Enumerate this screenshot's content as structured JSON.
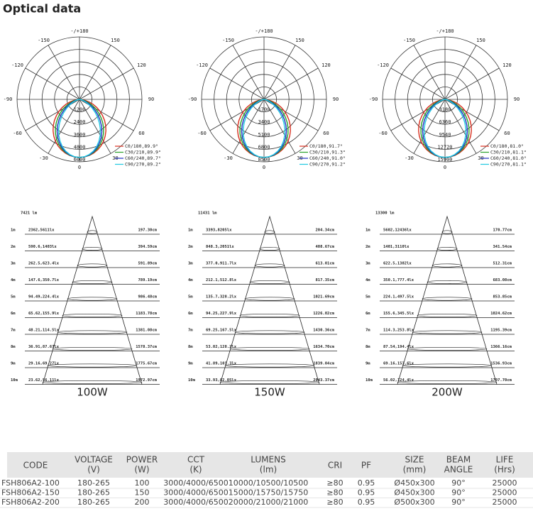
{
  "title": "Optical data",
  "polar_angles": [
    {
      "value": 180,
      "label": "-/+180"
    },
    -150,
    150,
    -120,
    120,
    -90,
    90,
    -60,
    60,
    -30,
    30,
    0
  ],
  "photometrics": [
    {
      "radial_ticks": [
        1200,
        2400,
        3600,
        4800,
        6000
      ],
      "legend": [
        {
          "name": "C0/180,89.9°",
          "color": "#d83020"
        },
        {
          "name": "C30/210,89.9°",
          "color": "#2aa02a"
        },
        {
          "name": "C60/240,89.7°",
          "color": "#2030c0"
        },
        {
          "name": "C90/270,89.2°",
          "color": "#20c8e0"
        }
      ],
      "lumens": "7421 lm",
      "rows": [
        [
          "1m",
          "2362,5611lx",
          "197.30cm"
        ],
        [
          "2m",
          "590.6,1403lx",
          "394.59cm"
        ],
        [
          "3m",
          "262.5,623.4lx",
          "591.89cm"
        ],
        [
          "4m",
          "147.6,350.7lx",
          "789.19cm"
        ],
        [
          "5m",
          "94.49,224.4lx",
          "986.48cm"
        ],
        [
          "6m",
          "65.62,155.9lx",
          "1183.78cm"
        ],
        [
          "7m",
          "48.21,114.5lx",
          "1381.08cm"
        ],
        [
          "8m",
          "36.91,87.67lx",
          "1578.37cm"
        ],
        [
          "9m",
          "29.16,69.27lx",
          "1775.67cm"
        ],
        [
          "10m",
          "23.62,56.11lx",
          "1972.97cm"
        ]
      ],
      "label": "100W"
    },
    {
      "radial_ticks": [
        1700,
        3400,
        5100,
        6800,
        8500
      ],
      "legend": [
        {
          "name": "C0/180,91.7°",
          "color": "#d83020"
        },
        {
          "name": "C30/210,91.3°",
          "color": "#2aa02a"
        },
        {
          "name": "C60/240,91.0°",
          "color": "#2030c0"
        },
        {
          "name": "C90/270,91.2°",
          "color": "#20c8e0"
        }
      ],
      "lumens": "11431 lm",
      "rows": [
        [
          "1m",
          "3393,8205lx",
          "204.34cm"
        ],
        [
          "2m",
          "848.3,2051lx",
          "408.67cm"
        ],
        [
          "3m",
          "377.0,911.7lx",
          "613.01cm"
        ],
        [
          "4m",
          "212.1,512.8lx",
          "817.35cm"
        ],
        [
          "5m",
          "135.7,328.2lx",
          "1021.69cm"
        ],
        [
          "6m",
          "94.25,227.9lx",
          "1226.02cm"
        ],
        [
          "7m",
          "69.25,167.5lx",
          "1430.36cm"
        ],
        [
          "8m",
          "53.02,128.2lx",
          "1634.70cm"
        ],
        [
          "9m",
          "41.89,101.3lx",
          "1839.04cm"
        ],
        [
          "10m",
          "33.93,82.05lx",
          "2043.37cm"
        ]
      ],
      "label": "150W"
    },
    {
      "radial_ticks": [
        3180,
        6360,
        9540,
        12720,
        15900
      ],
      "legend": [
        {
          "name": "C0/180,81.0°",
          "color": "#d83020"
        },
        {
          "name": "C30/210,81.1°",
          "color": "#2aa02a"
        },
        {
          "name": "C60/240,81.0°",
          "color": "#2030c0"
        },
        {
          "name": "C90/270,81.1°",
          "color": "#20c8e0"
        }
      ],
      "lumens": "13300 lm",
      "rows": [
        [
          "1m",
          "5602,12436lx",
          "170.77cm"
        ],
        [
          "2m",
          "1401,3110lx",
          "341.54cm"
        ],
        [
          "3m",
          "622.5,1382lx",
          "512.31cm"
        ],
        [
          "4m",
          "350.1,777.4lx",
          "683.08cm"
        ],
        [
          "5m",
          "224.1,497.5lx",
          "853.85cm"
        ],
        [
          "6m",
          "155.6,345.5lx",
          "1024.62cm"
        ],
        [
          "7m",
          "114.3,253.8lx",
          "1195.39cm"
        ],
        [
          "8m",
          "87.54,194.4lx",
          "1366.16cm"
        ],
        [
          "9m",
          "69.16,153.6lx",
          "1536.93cm"
        ],
        [
          "10m",
          "56.02,124.4lx",
          "1707.70cm"
        ]
      ],
      "label": "200W"
    }
  ],
  "table": {
    "header": [
      [
        "CODE"
      ],
      [
        "VOLTAGE",
        "(V)"
      ],
      [
        "POWER",
        "(W)"
      ],
      [
        "CCT",
        "(K)"
      ],
      [
        "LUMENS",
        "(lm)"
      ],
      [
        "CRI"
      ],
      [
        "PF"
      ],
      [
        "SIZE",
        "(mm)"
      ],
      [
        "BEAM",
        "ANGLE"
      ],
      [
        "LIFE",
        "(Hrs)"
      ]
    ],
    "rows": [
      [
        "FSH806A2-100",
        "180-265",
        "100",
        "3000/4000/6500",
        "10000/10500/10500",
        "≥80",
        "0.95",
        "Ø450x300",
        "90°",
        "25000"
      ],
      [
        "FSH806A2-150",
        "180-265",
        "150",
        "3000/4000/6500",
        "15000/15750/15750",
        "≥80",
        "0.95",
        "Ø450x300",
        "90°",
        "25000"
      ],
      [
        "FSH806A2-200",
        "180-265",
        "200",
        "3000/4000/6500",
        "20000/21000/21000",
        "≥80",
        "0.95",
        "Ø500x300",
        "90°",
        "25000"
      ]
    ]
  }
}
